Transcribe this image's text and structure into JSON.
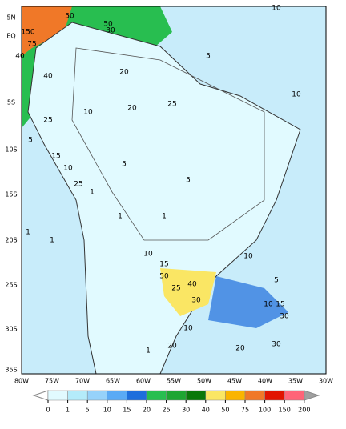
{
  "map": {
    "lat_labels": [
      "5N",
      "EQ",
      "5S",
      "10S",
      "15S",
      "20S",
      "25S",
      "30S",
      "35S"
    ],
    "lon_labels": [
      "80W",
      "75W",
      "70W",
      "65W",
      "60W",
      "55W",
      "50W",
      "45W",
      "40W",
      "35W",
      "30W"
    ],
    "contour_labels": [
      "50",
      "50",
      "40",
      "150",
      "75",
      "40",
      "30",
      "20",
      "25",
      "10",
      "10",
      "25",
      "20",
      "10",
      "5",
      "1",
      "5",
      "10",
      "25",
      "15",
      "1",
      "1",
      "5",
      "1",
      "10",
      "15",
      "25",
      "40",
      "50",
      "30",
      "10",
      "20",
      "1",
      "5",
      "10",
      "15",
      "30",
      "20",
      "30",
      "1",
      "5",
      "10"
    ],
    "colorbar": {
      "ticks": [
        0,
        1,
        5,
        10,
        15,
        20,
        25,
        30,
        40,
        50,
        75,
        100,
        150,
        200
      ],
      "colors": [
        "#ffffff",
        "#e1faff",
        "#b4ebfa",
        "#96d2fa",
        "#5aaaf5",
        "#1e6edc",
        "#28be50",
        "#1ea532",
        "#0a780a",
        "#fae664",
        "#fab400",
        "#f07828",
        "#e11400",
        "#ff6478",
        "#a0a0a0"
      ]
    }
  }
}
